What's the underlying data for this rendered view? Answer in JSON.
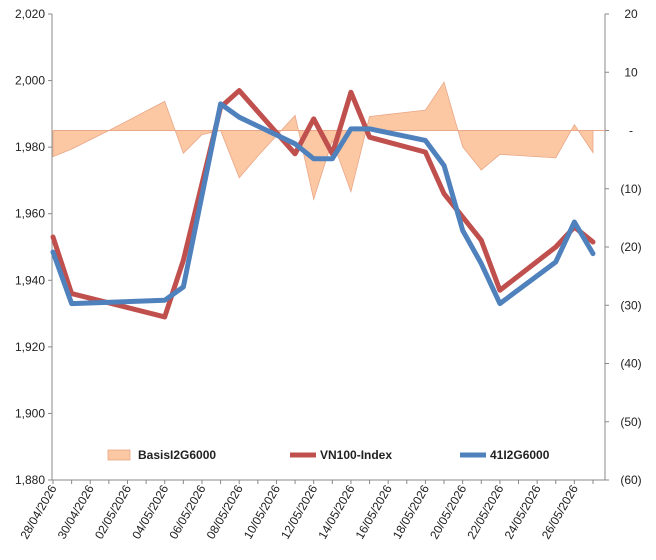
{
  "chart_data": {
    "type": "line",
    "x": [
      "28/04/2026",
      "29/04/2026",
      "30/04/2026",
      "01/05/2026",
      "02/05/2026",
      "03/05/2026",
      "04/05/2026",
      "05/05/2026",
      "06/05/2026",
      "07/05/2026",
      "08/05/2026",
      "09/05/2026",
      "10/05/2026",
      "11/05/2026",
      "12/05/2026",
      "13/05/2026",
      "14/05/2026",
      "15/05/2026",
      "16/05/2026",
      "17/05/2026",
      "18/05/2026",
      "19/05/2026",
      "20/05/2026",
      "21/05/2026",
      "22/05/2026",
      "23/05/2026",
      "24/05/2026",
      "25/05/2026",
      "26/05/2026",
      "27/05/2026"
    ],
    "x_tick_labels": [
      "28/04/2026",
      "30/04/2026",
      "02/05/2026",
      "04/05/2026",
      "06/05/2026",
      "08/05/2026",
      "10/05/2026",
      "12/05/2026",
      "14/05/2026",
      "16/05/2026",
      "18/05/2026",
      "20/05/2026",
      "22/05/2026",
      "24/05/2026",
      "26/05/2026"
    ],
    "y_left": {
      "min": 1880,
      "max": 2020,
      "ticks": [
        "2,020",
        "2,000",
        "1,980",
        "1,960",
        "1,940",
        "1,920",
        "1,900",
        "1,880"
      ]
    },
    "y_right": {
      "min": -60,
      "max": 20,
      "ticks": [
        "20",
        "10",
        "-",
        "(10)",
        "(20)",
        "(30)",
        "(40)",
        "(50)",
        "(60)"
      ]
    },
    "series": [
      {
        "name": "BasisI2G6000",
        "kind": "area",
        "axis": "right",
        "color": "#fcc8a4",
        "stroke": "#e8a787",
        "points": [
          [
            "28/04/2026",
            -4.5
          ],
          [
            "29/04/2026",
            -3.2
          ],
          [
            "01/05/2026",
            0.0
          ],
          [
            "04/05/2026",
            5.0
          ],
          [
            "05/05/2026",
            -3.9
          ],
          [
            "06/05/2026",
            -0.7
          ],
          [
            "07/05/2026",
            0.0
          ],
          [
            "08/05/2026",
            -8.1
          ],
          [
            "09/05/2026",
            -4.4
          ],
          [
            "11/05/2026",
            2.6
          ],
          [
            "12/05/2026",
            -11.8
          ],
          [
            "13/05/2026",
            -1.7
          ],
          [
            "14/05/2026",
            -10.5
          ],
          [
            "15/05/2026",
            2.4
          ],
          [
            "18/05/2026",
            3.5
          ],
          [
            "19/05/2026",
            8.3
          ],
          [
            "20/05/2026",
            -2.8
          ],
          [
            "21/05/2026",
            -6.8
          ],
          [
            "22/05/2026",
            -4.1
          ],
          [
            "25/05/2026",
            -4.7
          ],
          [
            "26/05/2026",
            1.0
          ],
          [
            "27/05/2026",
            -3.8
          ]
        ]
      },
      {
        "name": "VN100-Index",
        "kind": "line",
        "axis": "left",
        "color": "#c0504d",
        "points": [
          [
            "28/04/2026",
            1953
          ],
          [
            "29/04/2026",
            1936
          ],
          [
            "04/05/2026",
            1929
          ],
          [
            "05/05/2026",
            1946
          ],
          [
            "07/05/2026",
            1992
          ],
          [
            "08/05/2026",
            1997
          ],
          [
            "11/05/2026",
            1978
          ],
          [
            "12/05/2026",
            1988.5
          ],
          [
            "13/05/2026",
            1978
          ],
          [
            "14/05/2026",
            1996.5
          ],
          [
            "15/05/2026",
            1983
          ],
          [
            "18/05/2026",
            1978.5
          ],
          [
            "19/05/2026",
            1966
          ],
          [
            "21/05/2026",
            1952
          ],
          [
            "22/05/2026",
            1937
          ],
          [
            "25/05/2026",
            1950
          ],
          [
            "26/05/2026",
            1956
          ],
          [
            "27/05/2026",
            1951.5
          ]
        ]
      },
      {
        "name": "41I2G6000",
        "kind": "line",
        "axis": "left",
        "color": "#4f81bd",
        "points": [
          [
            "28/04/2026",
            1948.5
          ],
          [
            "29/04/2026",
            1933
          ],
          [
            "04/05/2026",
            1934
          ],
          [
            "05/05/2026",
            1938
          ],
          [
            "07/05/2026",
            1993
          ],
          [
            "08/05/2026",
            1989
          ],
          [
            "11/05/2026",
            1981
          ],
          [
            "12/05/2026",
            1976.5
          ],
          [
            "13/05/2026",
            1976.5
          ],
          [
            "14/05/2026",
            1985.5
          ],
          [
            "15/05/2026",
            1985.5
          ],
          [
            "18/05/2026",
            1982
          ],
          [
            "19/05/2026",
            1974.5
          ],
          [
            "20/05/2026",
            1955
          ],
          [
            "21/05/2026",
            1945
          ],
          [
            "22/05/2026",
            1933
          ],
          [
            "25/05/2026",
            1945.5
          ],
          [
            "26/05/2026",
            1957.5
          ],
          [
            "27/05/2026",
            1948
          ]
        ]
      }
    ],
    "grid": false,
    "legend": "bottom"
  }
}
